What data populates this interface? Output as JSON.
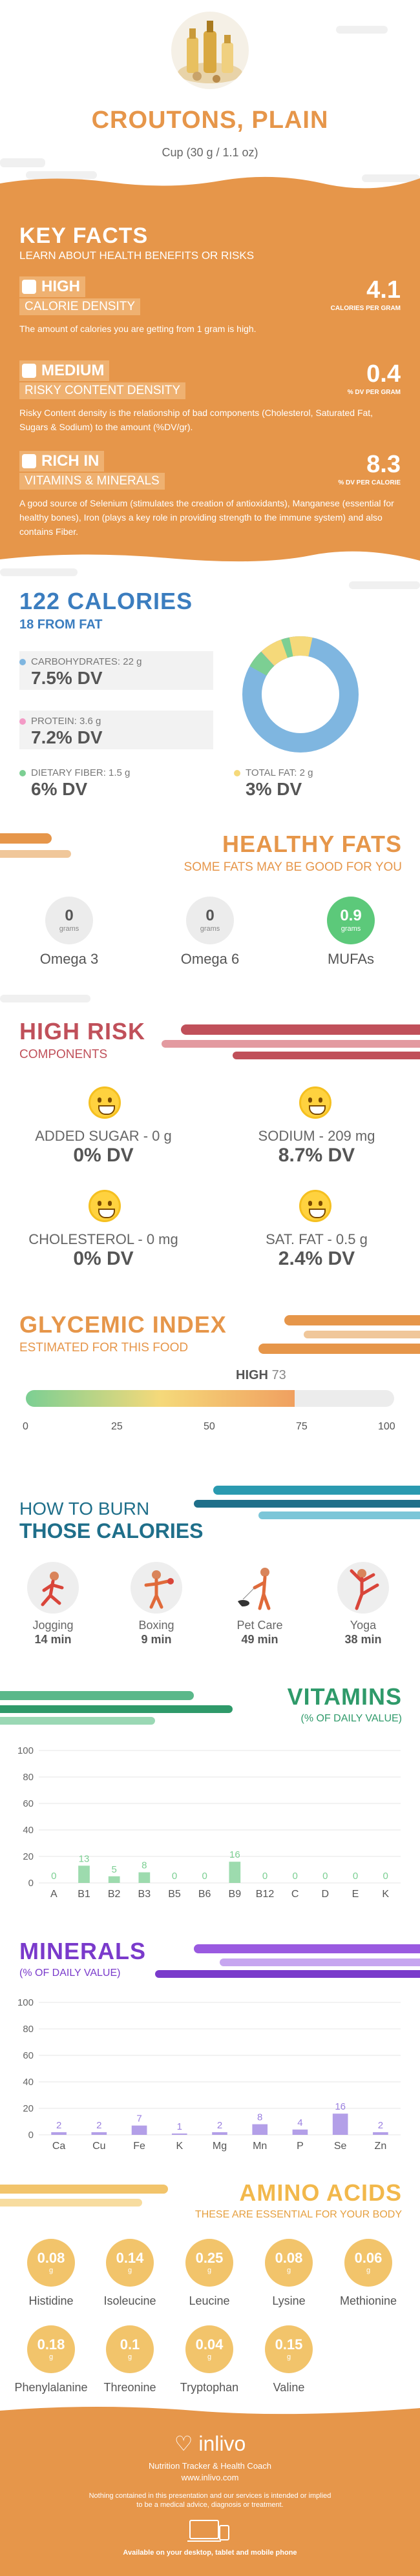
{
  "header": {
    "title": "CROUTONS, PLAIN",
    "serving": "Cup (30 g / 1.1 oz)"
  },
  "key_facts": {
    "title": "KEY FACTS",
    "subtitle": "LEARN ABOUT HEALTH BENEFITS OR RISKS",
    "items": [
      {
        "level": "HIGH",
        "label": "CALORIE DENSITY",
        "value": "4.1",
        "unit": "CALORIES PER GRAM",
        "desc": "The amount of calories you are getting from 1 gram is high."
      },
      {
        "level": "MEDIUM",
        "label": "RISKY CONTENT DENSITY",
        "value": "0.4",
        "unit": "% DV PER GRAM",
        "desc": "Risky Content density is the relationship of bad components (Cholesterol, Saturated Fat, Sugars & Sodium) to the amount (%DV/gr)."
      },
      {
        "level": "RICH  IN",
        "label": "VITAMINS & MINERALS",
        "value": "8.3",
        "unit": "% DV PER CALORIE",
        "desc": "A good source of Selenium (stimulates the creation of antioxidants), Manganese (essential for healthy bones), Iron (plays a key role in providing strength to the immune system) and also contains Fiber."
      }
    ]
  },
  "calories": {
    "title": "122 CALORIES",
    "from_fat": "18 FROM FAT",
    "carbs": {
      "label": "CARBOHYDRATES: 22 g",
      "dv": "7.5% DV",
      "color": "#7fb6e0"
    },
    "protein": {
      "label": "PROTEIN: 3.6 g",
      "dv": "7.2% DV",
      "color": "#f39ac6"
    },
    "fiber": {
      "label": "DIETARY FIBER: 1.5 g",
      "dv": "6% DV",
      "color": "#7ccf93"
    },
    "fat": {
      "label": "TOTAL FAT: 2 g",
      "dv": "3% DV",
      "color": "#f5d97a"
    }
  },
  "healthy_fats": {
    "title": "HEALTHY FATS",
    "subtitle": "SOME FATS MAY BE GOOD FOR YOU",
    "unit": "grams",
    "items": [
      {
        "value": "0",
        "label": "Omega 3"
      },
      {
        "value": "0",
        "label": "Omega 6"
      },
      {
        "value": "0.9",
        "label": "MUFAs"
      }
    ]
  },
  "high_risk": {
    "title": "HIGH RISK",
    "subtitle": "COMPONENTS",
    "items": [
      {
        "label": "ADDED SUGAR - 0 g",
        "dv": "0% DV"
      },
      {
        "label": "SODIUM - 209 mg",
        "dv": "8.7% DV"
      },
      {
        "label": "CHOLESTEROL - 0 mg",
        "dv": "0% DV"
      },
      {
        "label": "SAT. FAT - 0.5 g",
        "dv": "2.4% DV"
      }
    ]
  },
  "glycemic": {
    "title": "GLYCEMIC INDEX",
    "subtitle": "ESTIMATED FOR THIS FOOD",
    "level": "HIGH",
    "value": "73",
    "ticks": [
      "0",
      "25",
      "50",
      "75",
      "100"
    ]
  },
  "burn": {
    "title1": "HOW TO BURN",
    "title2": "THOSE CALORIES",
    "items": [
      {
        "name": "Jogging",
        "time": "14 min"
      },
      {
        "name": "Boxing",
        "time": "9 min"
      },
      {
        "name": "Pet Care",
        "time": "49 min"
      },
      {
        "name": "Yoga",
        "time": "38 min"
      }
    ]
  },
  "vitamins": {
    "title": "VITAMINS",
    "subtitle": "(% OF DAILY VALUE)",
    "color": "#7ccf93",
    "y_ticks": [
      "100",
      "80",
      "60",
      "40",
      "20",
      "0"
    ],
    "chart_data": {
      "type": "bar",
      "categories": [
        "A",
        "B1",
        "B2",
        "B3",
        "B5",
        "B6",
        "B9",
        "B12",
        "C",
        "D",
        "E",
        "K"
      ],
      "values": [
        0,
        13,
        5,
        8,
        0,
        0,
        16,
        0,
        0,
        0,
        0,
        0
      ],
      "ylim": [
        0,
        100
      ]
    }
  },
  "minerals": {
    "title": "MINERALS",
    "subtitle": "(% OF DAILY VALUE)",
    "color": "#9a7fe0",
    "y_ticks": [
      "100",
      "80",
      "60",
      "40",
      "20",
      "0"
    ],
    "chart_data": {
      "type": "bar",
      "categories": [
        "Ca",
        "Cu",
        "Fe",
        "K",
        "Mg",
        "Mn",
        "P",
        "Se",
        "Zn"
      ],
      "values": [
        2,
        2,
        7,
        1,
        2,
        8,
        4,
        16,
        2
      ],
      "ylim": [
        0,
        100
      ]
    }
  },
  "amino": {
    "title": "AMINO ACIDS",
    "subtitle": "THESE ARE ESSENTIAL FOR YOUR BODY",
    "unit": "g",
    "items": [
      {
        "value": "0.08",
        "name": "Histidine"
      },
      {
        "value": "0.14",
        "name": "Isoleucine"
      },
      {
        "value": "0.25",
        "name": "Leucine"
      },
      {
        "value": "0.08",
        "name": "Lysine"
      },
      {
        "value": "0.06",
        "name": "Methionine"
      },
      {
        "value": "0.18",
        "name": "Phenylalanine"
      },
      {
        "value": "0.1",
        "name": "Threonine"
      },
      {
        "value": "0.04",
        "name": "Tryptophan"
      },
      {
        "value": "0.15",
        "name": "Valine"
      }
    ]
  },
  "footer": {
    "brand": "inlivo",
    "tagline": "Nutrition Tracker & Health Coach",
    "url": "www.inlivo.com",
    "disclaimer1": "Nothing contained in this presentation and our services is intended or implied",
    "disclaimer2": "to be a medical advice, diagnosis or treatment.",
    "available": "Available on your desktop, tablet and mobile phone"
  }
}
